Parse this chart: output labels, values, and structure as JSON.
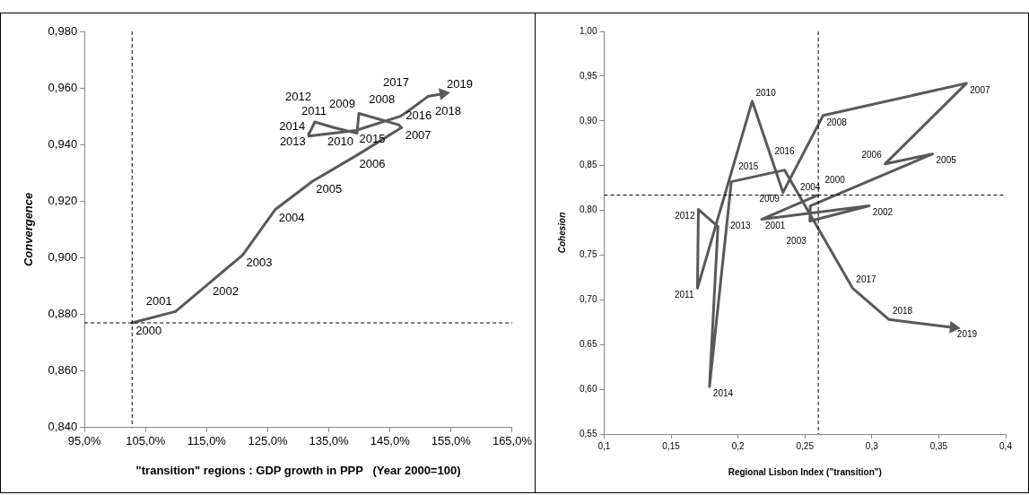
{
  "chart_data": [
    {
      "type": "line",
      "xlabel": "\"transition\" regions : GDP growth in PPP   (Year 2000=100)",
      "ylabel": "Convergence",
      "series": [
        {
          "color": "#595959",
          "x": [
            102.8,
            109.9,
            115.4,
            120.9,
            126.2,
            132.3,
            139.4,
            146.9,
            146.4,
            139.9,
            139.6,
            135.8,
            132.7,
            131.8,
            131.7,
            139.4,
            146.7,
            148.7,
            151.2,
            153.7
          ],
          "values": [
            0.877,
            0.881,
            0.891,
            0.901,
            0.917,
            0.927,
            0.936,
            0.946,
            0.947,
            0.951,
            0.944,
            0.946,
            0.948,
            0.944,
            0.943,
            0.945,
            0.95,
            0.953,
            0.957,
            0.958
          ]
        }
      ],
      "annotations": [
        {
          "text": "2000",
          "x": 102.8,
          "y": 0.877
        },
        {
          "text": "2001",
          "x": 109.9,
          "y": 0.881
        },
        {
          "text": "2002",
          "x": 115.4,
          "y": 0.891
        },
        {
          "text": "2003",
          "x": 120.9,
          "y": 0.901
        },
        {
          "text": "2004",
          "x": 126.2,
          "y": 0.917
        },
        {
          "text": "2005",
          "x": 132.3,
          "y": 0.927
        },
        {
          "text": "2006",
          "x": 139.4,
          "y": 0.936
        },
        {
          "text": "2007",
          "x": 146.9,
          "y": 0.946
        },
        {
          "text": "2008",
          "x": 146.4,
          "y": 0.947
        },
        {
          "text": "2009",
          "x": 139.9,
          "y": 0.951
        },
        {
          "text": "2010",
          "x": 139.6,
          "y": 0.944
        },
        {
          "text": "2011",
          "x": 135.8,
          "y": 0.946
        },
        {
          "text": "2012",
          "x": 132.7,
          "y": 0.948
        },
        {
          "text": "2013",
          "x": 131.8,
          "y": 0.944
        },
        {
          "text": "2014",
          "x": 131.7,
          "y": 0.943
        },
        {
          "text": "2015",
          "x": 139.4,
          "y": 0.945
        },
        {
          "text": "2016",
          "x": 146.7,
          "y": 0.95
        },
        {
          "text": "2017",
          "x": 148.7,
          "y": 0.953
        },
        {
          "text": "2018",
          "x": 151.2,
          "y": 0.957
        },
        {
          "text": "2019",
          "x": 153.7,
          "y": 0.958
        }
      ],
      "xlim": [
        95,
        165
      ],
      "xticks": [
        {
          "value": 95,
          "label": "95,0%"
        },
        {
          "value": 105,
          "label": "105,0%"
        },
        {
          "value": 115,
          "label": "115,0%"
        },
        {
          "value": 125,
          "label": "125,0%"
        },
        {
          "value": 135,
          "label": "135,0%"
        },
        {
          "value": 145,
          "label": "145,0%"
        },
        {
          "value": 155,
          "label": "155,0%"
        },
        {
          "value": 165,
          "label": "165,0%"
        }
      ],
      "ylim": [
        0.84,
        0.98
      ],
      "yticks": [
        {
          "value": 0.84,
          "label": "0,840"
        },
        {
          "value": 0.86,
          "label": "0,860"
        },
        {
          "value": 0.88,
          "label": "0,880"
        },
        {
          "value": 0.9,
          "label": "0,900"
        },
        {
          "value": 0.92,
          "label": "0,920"
        },
        {
          "value": 0.94,
          "label": "0,940"
        },
        {
          "value": 0.96,
          "label": "0,960"
        },
        {
          "value": 0.98,
          "label": "0,980"
        }
      ],
      "ref_lines": [
        {
          "axis": "x",
          "value": 102.8,
          "line_style": "dashed"
        },
        {
          "axis": "y",
          "value": 0.877,
          "line_style": "dashed"
        }
      ],
      "grid": false,
      "legend": false,
      "marker": "none",
      "line_style": "solid"
    },
    {
      "type": "line",
      "xlabel": "Regional Lisbon Index (\"transition\")",
      "ylabel": "Cohesion",
      "series": [
        {
          "color": "#595959",
          "x": [
            0.2596,
            0.2177,
            0.298,
            0.2537,
            0.254,
            0.3454,
            0.31,
            0.3707,
            0.2636,
            0.2336,
            0.2106,
            0.1697,
            0.1704,
            0.185,
            0.1787,
            0.195,
            0.2348,
            0.2856,
            0.3128,
            0.361
          ],
          "values": [
            0.817,
            0.79,
            0.805,
            0.788,
            0.805,
            0.863,
            0.852,
            0.942,
            0.906,
            0.82,
            0.922,
            0.713,
            0.801,
            0.782,
            0.603,
            0.832,
            0.845,
            0.713,
            0.678,
            0.669
          ]
        }
      ],
      "annotations": [
        {
          "text": "2000",
          "x": 0.2596,
          "y": 0.817
        },
        {
          "text": "2001",
          "x": 0.2177,
          "y": 0.79
        },
        {
          "text": "2002",
          "x": 0.298,
          "y": 0.805
        },
        {
          "text": "2003",
          "x": 0.2537,
          "y": 0.788
        },
        {
          "text": "2004",
          "x": 0.254,
          "y": 0.805
        },
        {
          "text": "2005",
          "x": 0.3454,
          "y": 0.863
        },
        {
          "text": "2006",
          "x": 0.31,
          "y": 0.852
        },
        {
          "text": "2007",
          "x": 0.3707,
          "y": 0.942
        },
        {
          "text": "2008",
          "x": 0.2636,
          "y": 0.906
        },
        {
          "text": "2009",
          "x": 0.2336,
          "y": 0.82
        },
        {
          "text": "2010",
          "x": 0.2106,
          "y": 0.922
        },
        {
          "text": "2011",
          "x": 0.1697,
          "y": 0.713
        },
        {
          "text": "2012",
          "x": 0.1704,
          "y": 0.801
        },
        {
          "text": "2013",
          "x": 0.185,
          "y": 0.782
        },
        {
          "text": "2014",
          "x": 0.1787,
          "y": 0.603
        },
        {
          "text": "2015",
          "x": 0.195,
          "y": 0.832
        },
        {
          "text": "2016",
          "x": 0.2348,
          "y": 0.845
        },
        {
          "text": "2017",
          "x": 0.2856,
          "y": 0.713
        },
        {
          "text": "2018",
          "x": 0.3128,
          "y": 0.678
        },
        {
          "text": "2019",
          "x": 0.361,
          "y": 0.669
        }
      ],
      "xlim": [
        0.1,
        0.4
      ],
      "xticks": [
        {
          "value": 0.1,
          "label": "0,1"
        },
        {
          "value": 0.15,
          "label": "0,15"
        },
        {
          "value": 0.2,
          "label": "0,2"
        },
        {
          "value": 0.25,
          "label": "0,25"
        },
        {
          "value": 0.3,
          "label": "0,3"
        },
        {
          "value": 0.35,
          "label": "0,35"
        },
        {
          "value": 0.4,
          "label": "0,4"
        }
      ],
      "ylim": [
        0.55,
        1.0
      ],
      "yticks": [
        {
          "value": 0.55,
          "label": "0,55"
        },
        {
          "value": 0.6,
          "label": "0,60"
        },
        {
          "value": 0.65,
          "label": "0,65"
        },
        {
          "value": 0.7,
          "label": "0,70"
        },
        {
          "value": 0.75,
          "label": "0,75"
        },
        {
          "value": 0.8,
          "label": "0,80"
        },
        {
          "value": 0.85,
          "label": "0,85"
        },
        {
          "value": 0.9,
          "label": "0,90"
        },
        {
          "value": 0.95,
          "label": "0,95"
        },
        {
          "value": 1.0,
          "label": "1,00"
        }
      ],
      "ref_lines": [
        {
          "axis": "x",
          "value": 0.26,
          "line_style": "dashed"
        },
        {
          "axis": "y",
          "value": 0.817,
          "line_style": "dashed"
        }
      ],
      "grid": false,
      "legend": false,
      "marker": "none",
      "line_style": "solid"
    }
  ]
}
